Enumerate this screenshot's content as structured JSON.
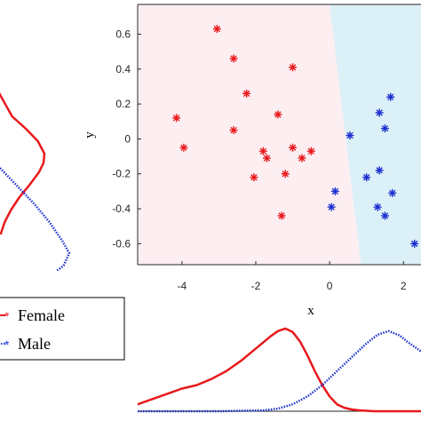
{
  "chart_data": [
    {
      "type": "scatter",
      "xlabel": "x",
      "ylabel": "y",
      "xlim": [
        -5.2,
        2.5
      ],
      "ylim": [
        -0.72,
        0.77
      ],
      "xticks": [
        -4,
        -2,
        0,
        2
      ],
      "yticks": [
        0.6,
        0.4,
        0.2,
        0,
        -0.2,
        -0.4,
        -0.6
      ],
      "grid": false,
      "regions": [
        {
          "name": "Female",
          "color": "#fdeef2"
        },
        {
          "name": "Male",
          "color": "#dcf0f8"
        }
      ],
      "boundary": {
        "x_at_top": 0.0,
        "x_at_bottom": 0.85
      },
      "series": [
        {
          "name": "Female",
          "color": "#e8191c",
          "marker": "asterisk",
          "points": [
            [
              -3.05,
              0.63
            ],
            [
              -2.6,
              0.46
            ],
            [
              -2.25,
              0.26
            ],
            [
              -1.0,
              0.41
            ],
            [
              -4.15,
              0.12
            ],
            [
              -3.95,
              -0.05
            ],
            [
              -2.6,
              0.05
            ],
            [
              -1.4,
              0.14
            ],
            [
              -1.8,
              -0.07
            ],
            [
              -1.7,
              -0.11
            ],
            [
              -1.0,
              -0.05
            ],
            [
              -0.75,
              -0.11
            ],
            [
              -0.5,
              -0.07
            ],
            [
              -2.05,
              -0.22
            ],
            [
              -1.2,
              -0.2
            ],
            [
              -1.3,
              -0.44
            ]
          ]
        },
        {
          "name": "Male",
          "color": "#1b2fd0",
          "marker": "asterisk",
          "points": [
            [
              1.65,
              0.24
            ],
            [
              1.35,
              0.15
            ],
            [
              0.55,
              0.02
            ],
            [
              1.5,
              0.06
            ],
            [
              1.35,
              -0.18
            ],
            [
              1.0,
              -0.22
            ],
            [
              1.7,
              -0.31
            ],
            [
              0.15,
              -0.3
            ],
            [
              0.05,
              -0.39
            ],
            [
              1.3,
              -0.39
            ],
            [
              1.5,
              -0.44
            ],
            [
              2.3,
              -0.6
            ]
          ]
        }
      ],
      "legend": {
        "position": "bottom-left",
        "entries": [
          "Female",
          "Male"
        ]
      }
    },
    {
      "type": "line",
      "description_role": "marginal density along x (bottom)",
      "xlim": [
        -5.2,
        2.5
      ],
      "series": [
        {
          "name": "Female",
          "color": "#e8191c",
          "style": "solid",
          "x": [
            -5.2,
            -4.8,
            -4.4,
            -4.0,
            -3.6,
            -3.2,
            -2.8,
            -2.4,
            -2.0,
            -1.6,
            -1.4,
            -1.2,
            -1.0,
            -0.8,
            -0.6,
            -0.4,
            -0.2,
            0.0,
            0.2,
            0.4,
            0.6,
            0.8,
            1.2,
            1.6,
            2.0,
            2.5
          ],
          "y": [
            0.08,
            0.14,
            0.2,
            0.26,
            0.3,
            0.37,
            0.46,
            0.58,
            0.72,
            0.86,
            0.92,
            0.95,
            0.91,
            0.8,
            0.64,
            0.46,
            0.3,
            0.17,
            0.08,
            0.04,
            0.02,
            0.01,
            0.0,
            0.0,
            0.0,
            0.0
          ]
        },
        {
          "name": "Male",
          "color": "#1b2fd0",
          "style": "dotted",
          "x": [
            -5.2,
            -3.0,
            -1.8,
            -1.4,
            -1.0,
            -0.6,
            -0.2,
            0.2,
            0.6,
            1.0,
            1.3,
            1.6,
            1.9,
            2.1,
            2.3,
            2.5
          ],
          "y": [
            0.0,
            0.0,
            0.01,
            0.03,
            0.08,
            0.17,
            0.3,
            0.46,
            0.62,
            0.78,
            0.88,
            0.92,
            0.87,
            0.8,
            0.74,
            0.68
          ]
        }
      ]
    },
    {
      "type": "line",
      "description_role": "marginal density along y (left, rotated)",
      "series": [
        {
          "name": "Female",
          "color": "#e8191c",
          "style": "solid",
          "y": [
            0.22,
            0.14,
            0.1,
            0.06,
            0.02,
            -0.01,
            -0.04,
            -0.08,
            -0.12,
            -0.16,
            -0.2,
            -0.24
          ],
          "d": [
            0.0,
            0.3,
            0.6,
            0.86,
            1.0,
            0.98,
            0.88,
            0.68,
            0.46,
            0.28,
            0.14,
            0.05
          ]
        },
        {
          "name": "Male",
          "color": "#1b2fd0",
          "style": "dotted",
          "y": [
            -0.02,
            -0.08,
            -0.14,
            -0.2,
            -0.26,
            -0.3,
            -0.34,
            -0.38,
            -0.42,
            -0.46,
            -0.5
          ],
          "d": [
            0.0,
            0.25,
            0.5,
            0.72,
            0.9,
            1.0,
            0.92,
            0.7,
            0.46,
            0.24,
            0.08
          ]
        }
      ]
    }
  ]
}
